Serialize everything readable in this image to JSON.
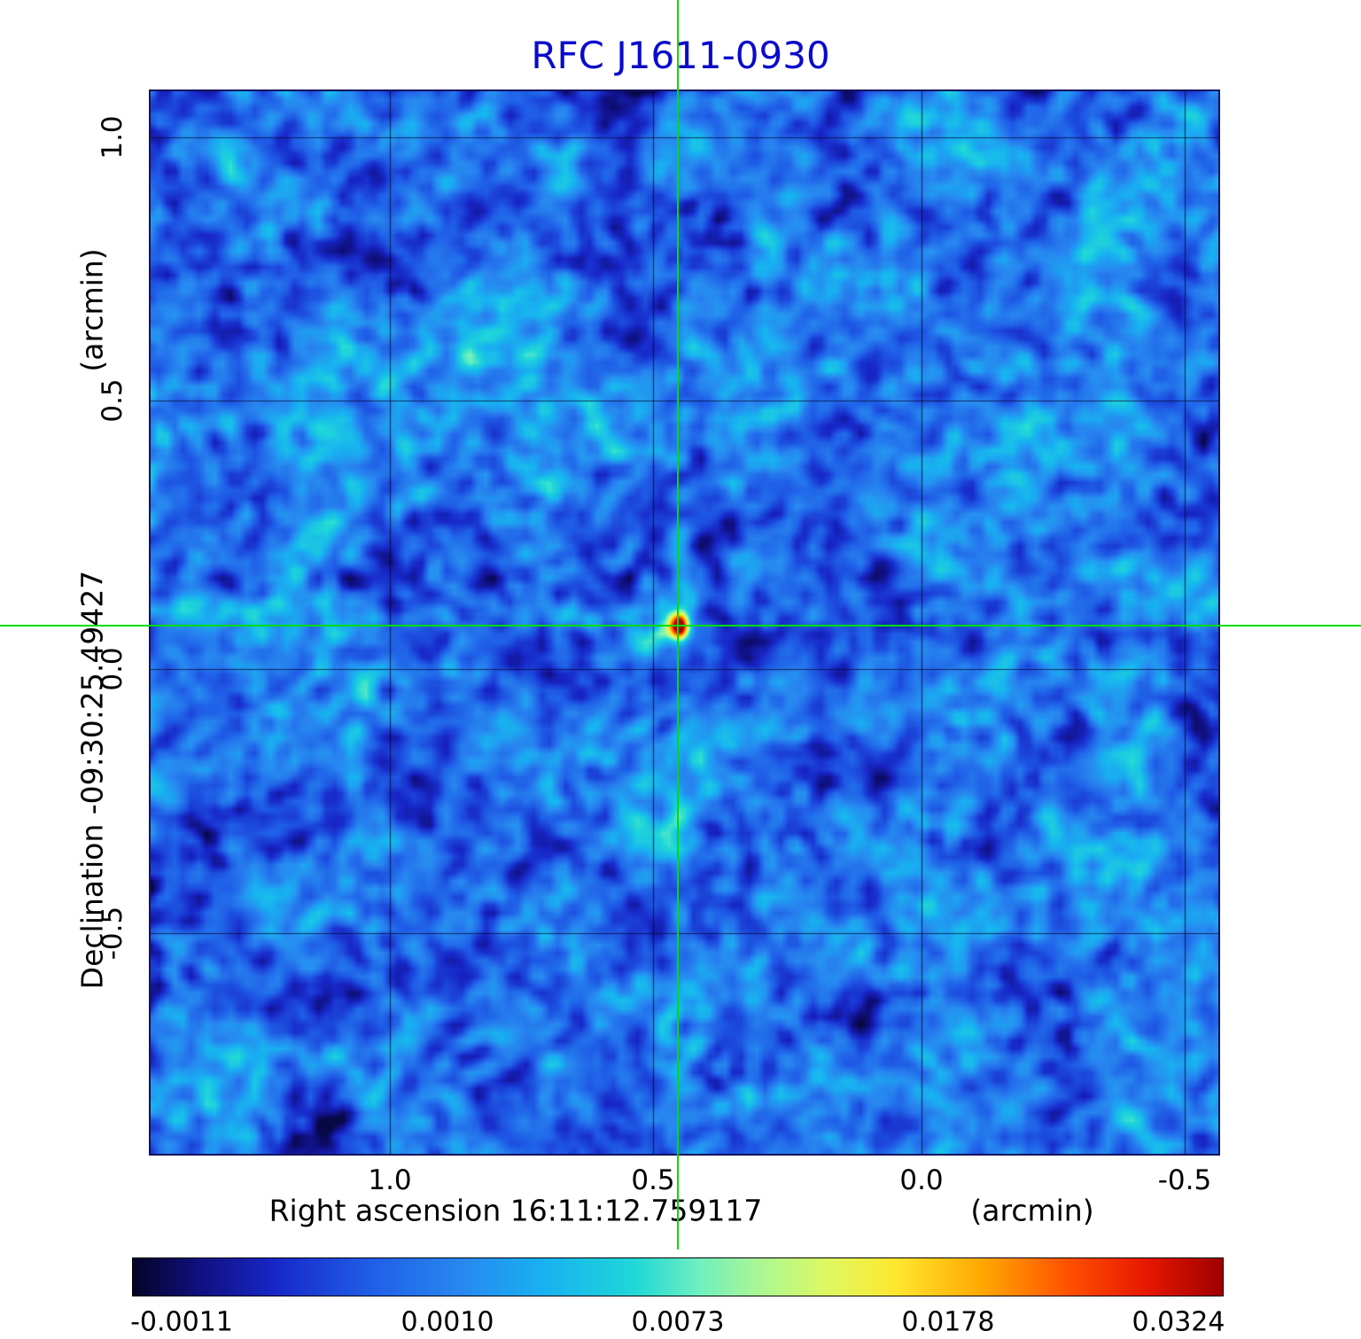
{
  "title": "RFC J1611-0930",
  "colors": {
    "title": "#0a0acc",
    "crosshair": "#00dd00",
    "grid_line": "rgba(5,5,45,0.7)",
    "frame": "#12125e",
    "text": "#000000"
  },
  "y_axis": {
    "unit_label": "(arcmin)",
    "name_label": "Declination  -09:30:25.49427",
    "ticks": [
      "1.0",
      "0.5",
      "0.0",
      "-0.5"
    ]
  },
  "x_axis": {
    "name_label": "Right ascension  16:11:12.759117",
    "unit_label": "(arcmin)",
    "ticks": [
      "1.0",
      "0.5",
      "0.0",
      "-0.5"
    ]
  },
  "colorbar": {
    "tick_labels": [
      "-0.0011",
      "0.0010",
      "0.0073",
      "0.0178",
      "0.0324"
    ],
    "stops": [
      {
        "t": 0.0,
        "c": "#050528"
      },
      {
        "t": 0.06,
        "c": "#101080"
      },
      {
        "t": 0.13,
        "c": "#1828c8"
      },
      {
        "t": 0.22,
        "c": "#2060e8"
      },
      {
        "t": 0.3,
        "c": "#2888f0"
      },
      {
        "t": 0.38,
        "c": "#18b4f0"
      },
      {
        "t": 0.46,
        "c": "#20d8d8"
      },
      {
        "t": 0.52,
        "c": "#70f0c0"
      },
      {
        "t": 0.58,
        "c": "#b0f890"
      },
      {
        "t": 0.64,
        "c": "#e0f860"
      },
      {
        "t": 0.7,
        "c": "#ffe830"
      },
      {
        "t": 0.78,
        "c": "#ffa800"
      },
      {
        "t": 0.86,
        "c": "#ff5000"
      },
      {
        "t": 0.93,
        "c": "#e81800"
      },
      {
        "t": 1.0,
        "c": "#a00000"
      }
    ]
  },
  "chart_data": {
    "type": "heatmap",
    "title": "RFC J1611-0930",
    "xlabel": "Right ascension 16:11:12.759117 (arcmin)",
    "ylabel": "Declination -09:30:25.49427 (arcmin)",
    "x_ticks_arcmin": [
      1.0,
      0.5,
      0.0,
      -0.5
    ],
    "y_ticks_arcmin": [
      1.0,
      0.5,
      0.0,
      -0.5
    ],
    "x_range_arcmin": [
      1.47,
      -0.56
    ],
    "y_range_arcmin": [
      -0.92,
      1.08
    ],
    "colorbar_value_labels": [
      -0.0011,
      0.001,
      0.0073,
      0.0178,
      0.0324
    ],
    "colormap": "rainbow (dark blue -> blue -> cyan -> green -> yellow -> orange -> red)",
    "background_noise_level": 0.001,
    "peak_source": {
      "x_arcmin": 0.47,
      "y_arcmin": 0.08,
      "peak_value": 0.0324
    },
    "negative_sidelobe": {
      "x_arcmin": 0.47,
      "y_arcmin": 0.0,
      "value": -0.0011
    },
    "secondary_feature": {
      "x_arcmin": 0.33,
      "y_arcmin": -0.81,
      "value": 0.006
    },
    "sidelobe_stripes": "horizontal low-level stripes through source position",
    "crosshair_arcmin": {
      "x": 0.47,
      "y": 0.08
    },
    "grid": true,
    "legend_position": "colorbar bottom"
  }
}
